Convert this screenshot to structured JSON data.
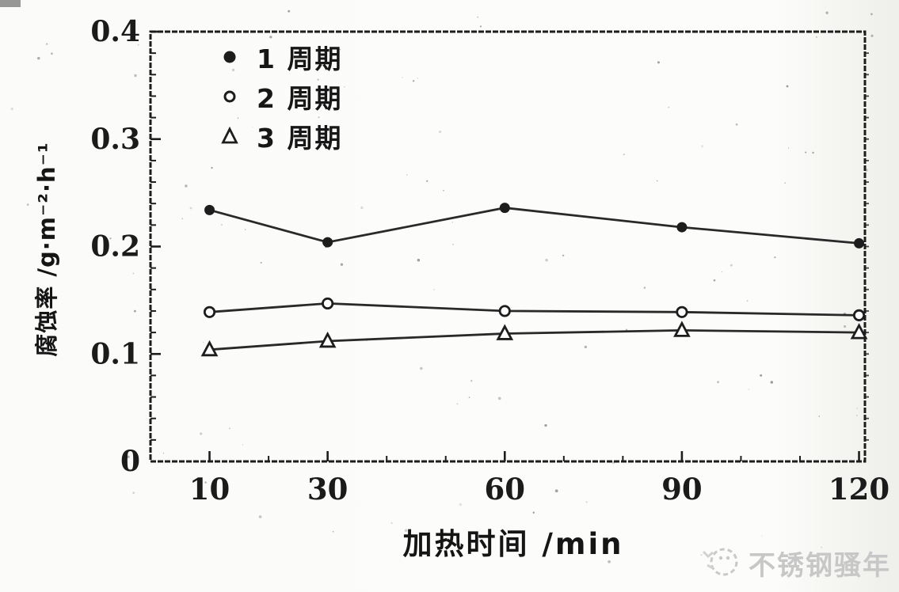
{
  "figure": {
    "watermark": {
      "text": "不锈钢骚年",
      "color": "#c7c7c7"
    },
    "colors": {
      "line": "#1d1d1d",
      "text": "#1b1b1b",
      "background": "#fbfbf9",
      "marker_fill": "#ffffff"
    }
  },
  "chart_data": {
    "type": "line",
    "title": "",
    "xlabel": "加热时间 /min",
    "ylabel": "腐蚀率 /g·m⁻²·h⁻¹",
    "x": [
      10,
      30,
      60,
      90,
      120
    ],
    "series": [
      {
        "name": "1 周期",
        "marker": "filled-circle",
        "values": [
          0.234,
          0.204,
          0.236,
          0.218,
          0.203
        ]
      },
      {
        "name": "2 周期",
        "marker": "open-circle",
        "values": [
          0.139,
          0.147,
          0.14,
          0.139,
          0.136
        ]
      },
      {
        "name": "3 周期",
        "marker": "open-triangle",
        "values": [
          0.104,
          0.112,
          0.119,
          0.122,
          0.12
        ]
      }
    ],
    "xlim": [
      0,
      121
    ],
    "ylim": [
      0,
      0.4
    ],
    "xticks": [
      10,
      30,
      60,
      90,
      120
    ],
    "xticklabels": [
      "10",
      "30",
      "60",
      "90",
      "120"
    ],
    "yticks": [
      0,
      0.1,
      0.2,
      0.3,
      0.4
    ],
    "yticklabels": [
      "0",
      "0.1",
      "0.2",
      "0.3",
      "0.4"
    ],
    "x_minor_step": 10,
    "y_minor_step": 0.02,
    "grid": false,
    "legend_position": "upper-left-inside"
  }
}
